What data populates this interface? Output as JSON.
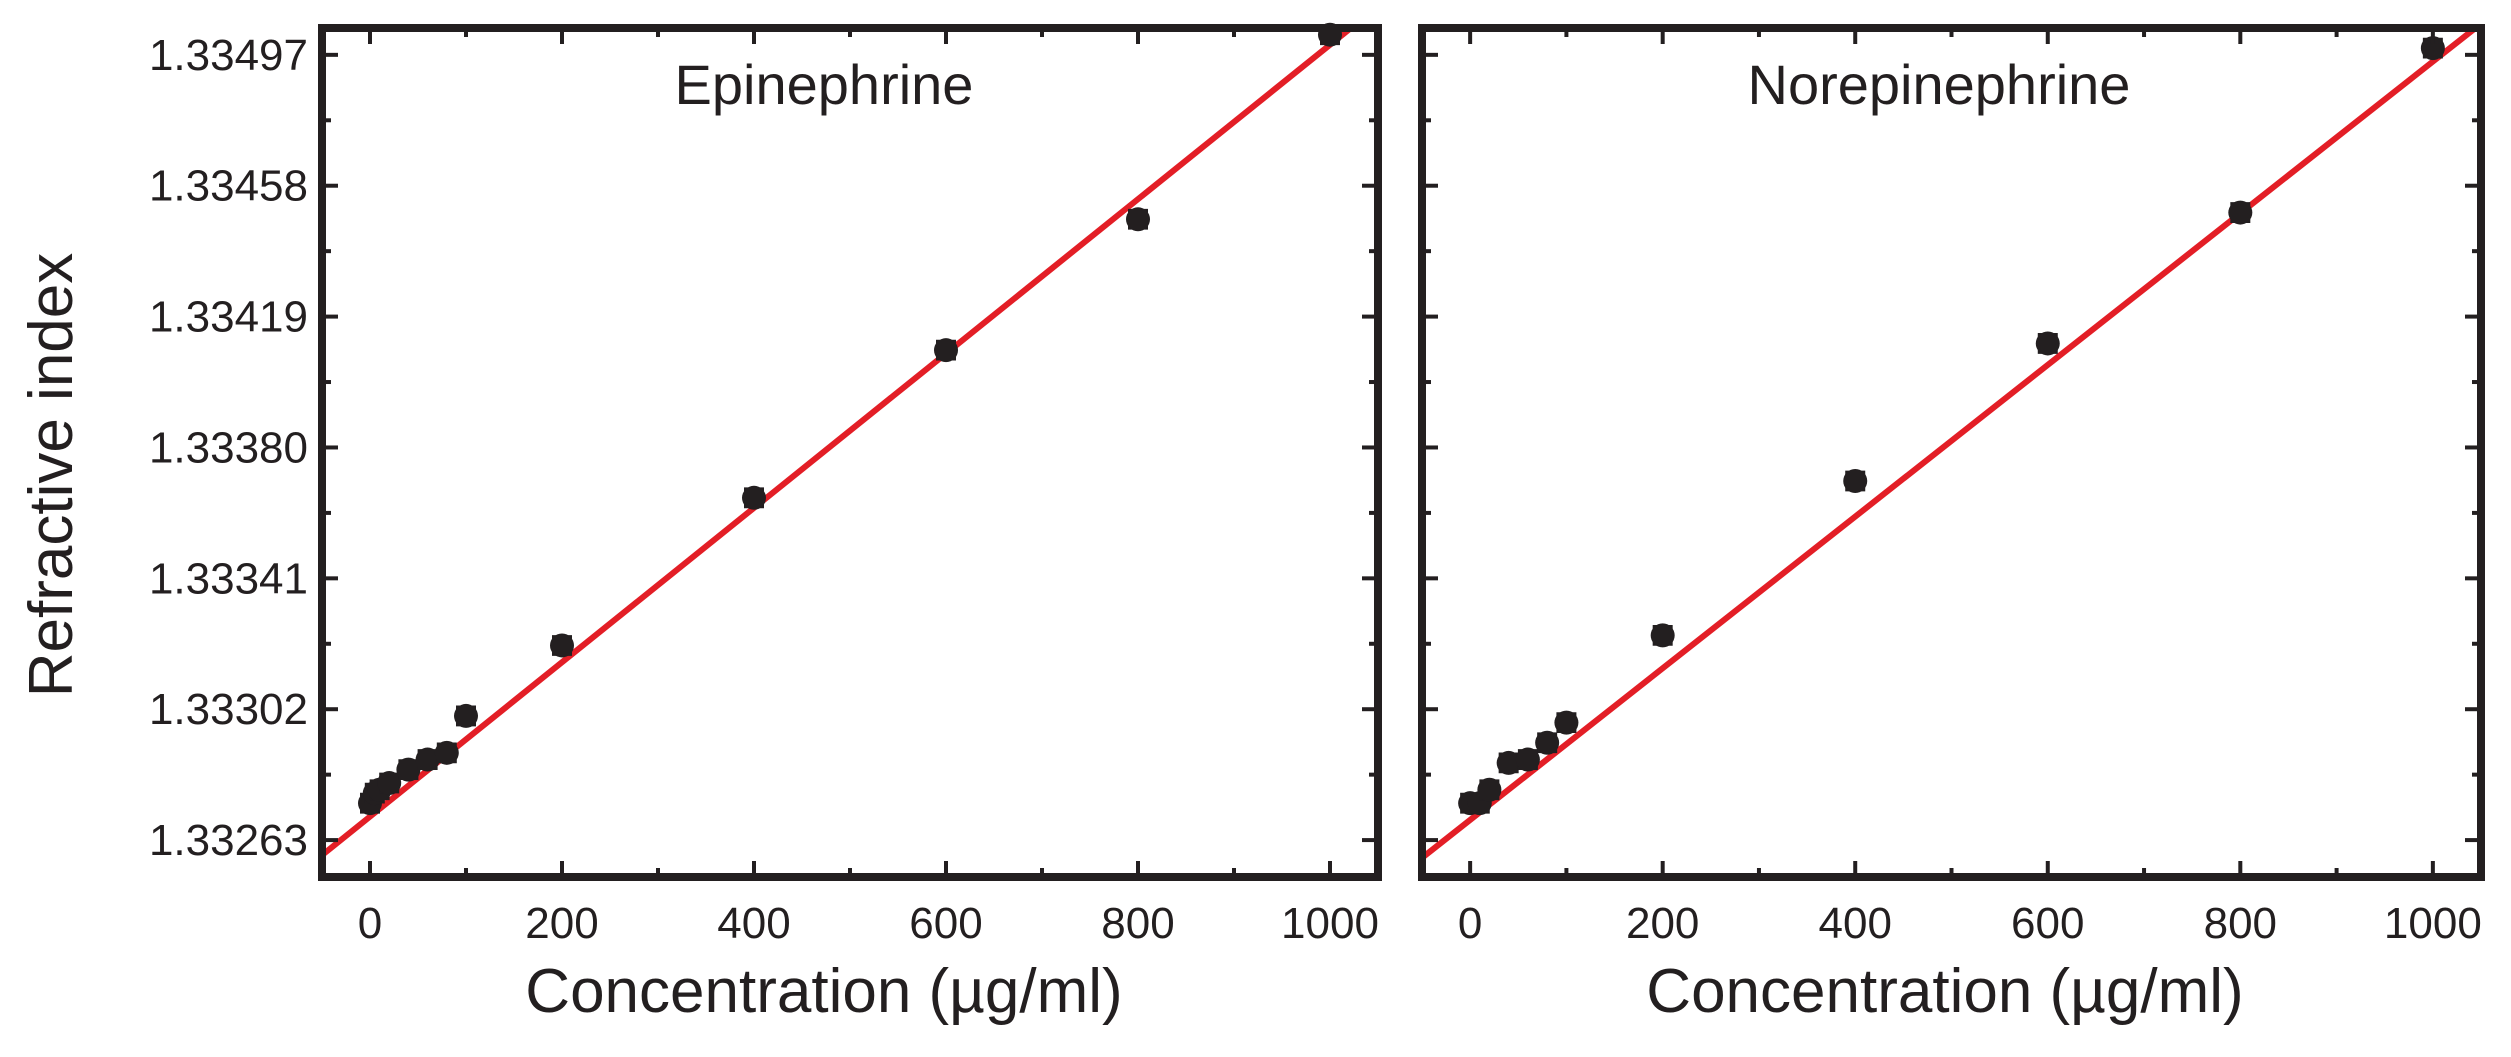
{
  "colors": {
    "marker": "#231f20",
    "fit_line": "#e31e26",
    "frame": "#231f20",
    "background": "#ffffff"
  },
  "chart_data": [
    {
      "type": "scatter",
      "title": "Epinephrine",
      "xlabel": "Concentration (µg/ml)",
      "ylabel": "Refractive index",
      "xlim": [
        -50,
        1050
      ],
      "ylim": [
        1.33252,
        1.33505
      ],
      "xticks": [
        0,
        200,
        400,
        600,
        800,
        1000
      ],
      "yticks": [
        1.33263,
        1.33302,
        1.33341,
        1.3338,
        1.33419,
        1.33458,
        1.33497
      ],
      "ytick_labels": [
        "1.33263",
        "1.33302",
        "1.33341",
        "1.33380",
        "1.33419",
        "1.33458",
        "1.33497"
      ],
      "x": [
        0,
        5,
        10,
        20,
        40,
        60,
        80,
        100,
        200,
        400,
        600,
        800,
        1000
      ],
      "y": [
        1.33274,
        1.33277,
        1.33278,
        1.3328,
        1.33284,
        1.33287,
        1.33289,
        1.333,
        1.33321,
        1.33365,
        1.33409,
        1.33448,
        1.33503
      ],
      "error": [
        2.5e-05,
        2.5e-05,
        2.5e-05,
        2.5e-05,
        2.5e-05,
        2.5e-05,
        2.5e-05,
        2.5e-05,
        2.5e-05,
        2.5e-05,
        2.5e-05,
        2.5e-05,
        2.5e-05
      ],
      "fit": {
        "slope": 2.3e-06,
        "intercept": 1.3327
      }
    },
    {
      "type": "scatter",
      "title": "Norepinephrine",
      "xlabel": "Concentration (µg/ml)",
      "ylabel": "",
      "xlim": [
        -50,
        1050
      ],
      "ylim": [
        1.33252,
        1.33505
      ],
      "xticks": [
        0,
        200,
        400,
        600,
        800,
        1000
      ],
      "yticks": [
        1.33263,
        1.33302,
        1.33341,
        1.3338,
        1.33419,
        1.33458,
        1.33497
      ],
      "ytick_labels": [],
      "x": [
        0,
        10,
        20,
        40,
        60,
        80,
        100,
        200,
        400,
        600,
        800,
        1000
      ],
      "y": [
        1.33274,
        1.33274,
        1.33278,
        1.33286,
        1.33287,
        1.33292,
        1.33298,
        1.33324,
        1.3337,
        1.33411,
        1.3345,
        1.33499
      ],
      "error": [
        2.5e-05,
        2.5e-05,
        2.5e-05,
        2.5e-05,
        2.5e-05,
        2.5e-05,
        2.5e-05,
        2.5e-05,
        2.5e-05,
        2.5e-05,
        2.5e-05,
        2.5e-05
      ],
      "fit": {
        "slope": 2.26e-06,
        "intercept": 1.33269
      }
    }
  ]
}
